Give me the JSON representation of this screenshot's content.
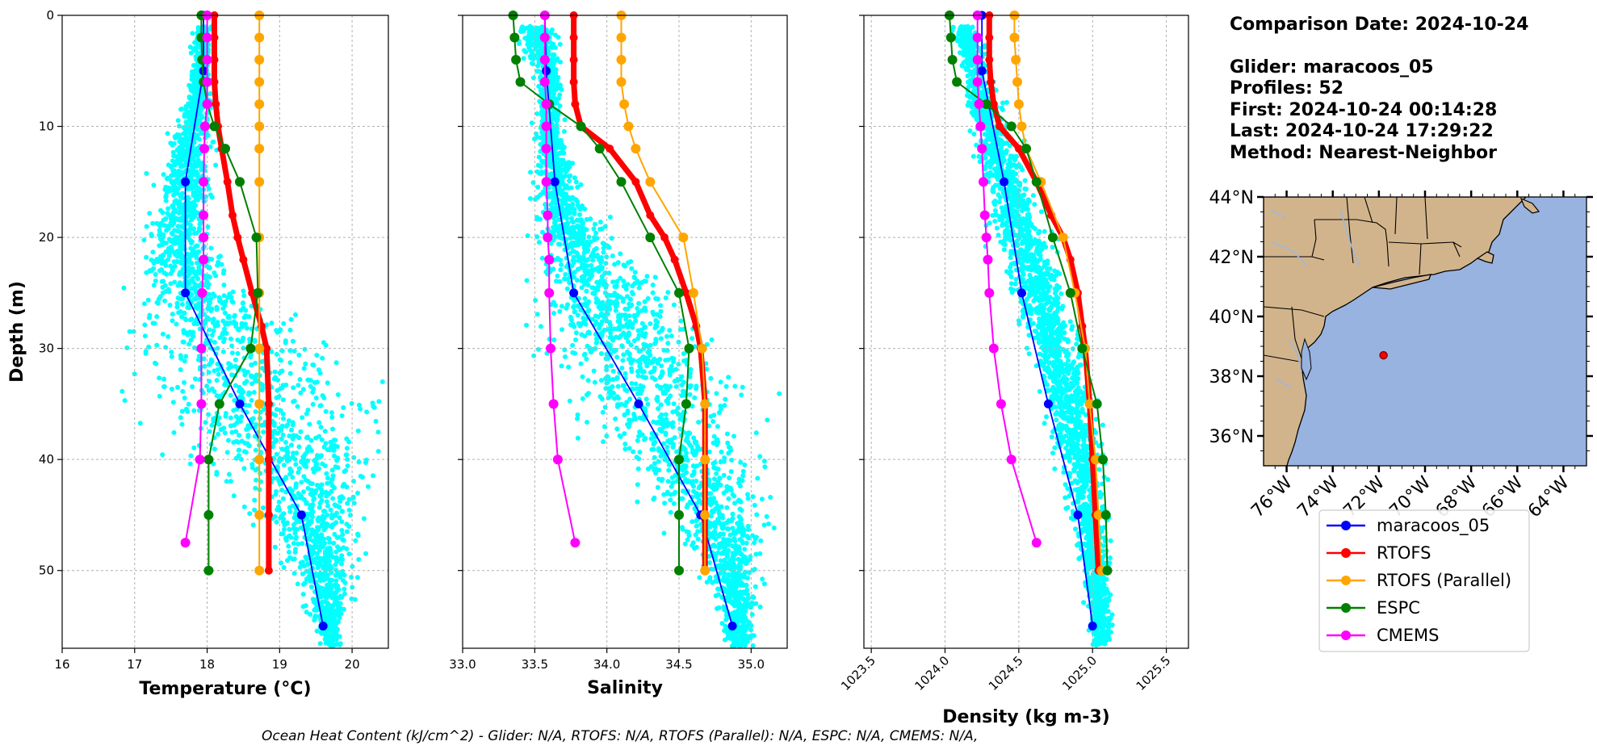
{
  "colors": {
    "glider_scatter": "#00ffff",
    "maracoos_05": "#0000ff",
    "RTOFS": "#ff0000",
    "RTOFS_Parallel": "#ffa500",
    "ESPC": "#008000",
    "CMEMS": "#ff00ff",
    "land": "#d2b48c",
    "ocean": "#98b3e0",
    "grid": "#b0b0b0"
  },
  "info": {
    "line1": "Comparison Date: 2024-10-24",
    "line2": "Glider: maracoos_05",
    "line3": "Profiles: 52",
    "line4": "First: 2024-10-24 00:14:28",
    "line5": "Last: 2024-10-24 17:29:22",
    "line6": "Method: Nearest-Neighbor"
  },
  "footer": "Ocean Heat Content (kJ/cm^2) - Glider: N/A,  RTOFS: N/A,  RTOFS (Parallel): N/A,  ESPC: N/A,  CMEMS: N/A,",
  "map": {
    "lat_labels": [
      "44°N",
      "42°N",
      "40°N",
      "38°N",
      "36°N"
    ],
    "lon_labels": [
      "76°W",
      "74°W",
      "72°W",
      "70°W",
      "68°W",
      "66°W",
      "64°W"
    ],
    "marker": {
      "lon": -71.8,
      "lat": 38.7
    }
  },
  "legend": [
    "maracoos_05",
    "RTOFS",
    "RTOFS (Parallel)",
    "ESPC",
    "CMEMS"
  ],
  "chart_data": [
    {
      "type": "line",
      "xlabel": "Temperature (°C)",
      "ylabel": "Depth (m)",
      "xlim": [
        16,
        20.5
      ],
      "ylim": [
        57,
        0
      ],
      "xticks": [
        "16",
        "17",
        "18",
        "19",
        "20"
      ],
      "yticks": [
        "0",
        "10",
        "20",
        "30",
        "40",
        "50"
      ],
      "grid": true,
      "series": [
        {
          "name": "maracoos_05",
          "depth": [
            0,
            5,
            15,
            25,
            35,
            45,
            55
          ],
          "values": [
            17.95,
            17.95,
            17.7,
            17.7,
            18.45,
            19.3,
            19.6
          ]
        },
        {
          "name": "RTOFS",
          "depth": [
            0,
            2,
            4,
            6,
            8,
            10,
            12,
            15,
            18,
            20,
            22,
            25,
            28,
            30,
            35,
            40,
            45,
            50
          ],
          "values": [
            18.1,
            18.1,
            18.1,
            18.1,
            18.12,
            18.15,
            18.2,
            18.28,
            18.35,
            18.42,
            18.5,
            18.62,
            18.75,
            18.82,
            18.85,
            18.85,
            18.85,
            18.85
          ]
        },
        {
          "name": "RTOFS (Parallel)",
          "depth": [
            0,
            2,
            4,
            6,
            8,
            10,
            12,
            15,
            20,
            25,
            30,
            35,
            40,
            45,
            50
          ],
          "values": [
            18.72,
            18.72,
            18.72,
            18.72,
            18.72,
            18.72,
            18.72,
            18.72,
            18.72,
            18.72,
            18.72,
            18.72,
            18.72,
            18.72,
            18.72
          ]
        },
        {
          "name": "ESPC",
          "depth": [
            0,
            2,
            4,
            6,
            8,
            10,
            12,
            15,
            20,
            25,
            30,
            35,
            40,
            45,
            50
          ],
          "values": [
            17.92,
            17.92,
            17.93,
            17.95,
            18.0,
            18.1,
            18.25,
            18.45,
            18.68,
            18.7,
            18.6,
            18.17,
            18.02,
            18.02,
            18.02
          ]
        },
        {
          "name": "CMEMS",
          "depth": [
            0,
            2,
            4,
            6,
            8,
            10,
            12,
            15,
            18,
            20,
            22,
            25,
            30,
            35,
            40,
            47.5
          ],
          "values": [
            18.0,
            18.0,
            18.0,
            18.0,
            18.0,
            17.97,
            17.96,
            17.95,
            17.95,
            17.95,
            17.95,
            17.93,
            17.92,
            17.92,
            17.9,
            17.7
          ]
        }
      ]
    },
    {
      "type": "line",
      "xlabel": "Salinity",
      "ylim": [
        57,
        0
      ],
      "xlim": [
        33.0,
        35.25
      ],
      "xticks": [
        "33.0",
        "33.5",
        "34.0",
        "34.5",
        "35.0"
      ],
      "grid": true,
      "series": [
        {
          "name": "maracoos_05",
          "depth": [
            0,
            5,
            15,
            25,
            35,
            45,
            55
          ],
          "values": [
            33.57,
            33.58,
            33.64,
            33.77,
            34.22,
            34.65,
            34.87
          ]
        },
        {
          "name": "RTOFS",
          "depth": [
            0,
            2,
            4,
            6,
            8,
            10,
            12,
            15,
            18,
            20,
            22,
            25,
            28,
            30,
            35,
            40,
            45,
            50
          ],
          "values": [
            33.77,
            33.77,
            33.77,
            33.77,
            33.78,
            33.82,
            34.02,
            34.2,
            34.3,
            34.4,
            34.47,
            34.55,
            34.62,
            34.65,
            34.68,
            34.68,
            34.68,
            34.68
          ]
        },
        {
          "name": "RTOFS (Parallel)",
          "depth": [
            0,
            2,
            4,
            6,
            8,
            10,
            12,
            15,
            20,
            25,
            30,
            35,
            40,
            45,
            50
          ],
          "values": [
            34.1,
            34.1,
            34.1,
            34.1,
            34.12,
            34.15,
            34.2,
            34.3,
            34.53,
            34.6,
            34.66,
            34.68,
            34.68,
            34.68,
            34.68
          ]
        },
        {
          "name": "ESPC",
          "depth": [
            0,
            2,
            4,
            6,
            8,
            10,
            12,
            15,
            20,
            25,
            30,
            35,
            40,
            45,
            50
          ],
          "values": [
            33.35,
            33.36,
            33.37,
            33.4,
            33.6,
            33.82,
            33.95,
            34.1,
            34.3,
            34.5,
            34.57,
            34.55,
            34.5,
            34.5,
            34.5
          ]
        },
        {
          "name": "CMEMS",
          "depth": [
            0,
            2,
            4,
            6,
            8,
            10,
            12,
            15,
            18,
            20,
            22,
            25,
            30,
            35,
            40,
            47.5
          ],
          "values": [
            33.57,
            33.57,
            33.57,
            33.57,
            33.58,
            33.58,
            33.58,
            33.58,
            33.59,
            33.59,
            33.6,
            33.6,
            33.61,
            33.63,
            33.66,
            33.78
          ]
        }
      ]
    },
    {
      "type": "line",
      "xlabel": "Density (kg m-3)",
      "ylim": [
        57,
        0
      ],
      "xlim": [
        1023.45,
        1025.65
      ],
      "xticks": [
        "1023.5",
        "1024.0",
        "1024.5",
        "1025.0",
        "1025.5"
      ],
      "grid": true,
      "series": [
        {
          "name": "maracoos_05",
          "depth": [
            0,
            5,
            15,
            25,
            35,
            45,
            55
          ],
          "values": [
            1024.25,
            1024.25,
            1024.4,
            1024.52,
            1024.7,
            1024.9,
            1025.0
          ]
        },
        {
          "name": "RTOFS",
          "depth": [
            0,
            2,
            4,
            6,
            8,
            10,
            12,
            15,
            18,
            20,
            22,
            25,
            28,
            30,
            35,
            40,
            45,
            50
          ],
          "values": [
            1024.3,
            1024.3,
            1024.3,
            1024.31,
            1024.33,
            1024.37,
            1024.5,
            1024.62,
            1024.72,
            1024.8,
            1024.85,
            1024.9,
            1024.93,
            1024.95,
            1024.98,
            1025.0,
            1025.02,
            1025.04
          ]
        },
        {
          "name": "RTOFS (Parallel)",
          "depth": [
            0,
            2,
            4,
            6,
            8,
            10,
            12,
            15,
            20,
            25,
            30,
            35,
            40,
            45,
            50
          ],
          "values": [
            1024.47,
            1024.47,
            1024.48,
            1024.49,
            1024.5,
            1024.52,
            1024.55,
            1024.65,
            1024.8,
            1024.88,
            1024.95,
            1024.98,
            1025.02,
            1025.04,
            1025.06
          ]
        },
        {
          "name": "ESPC",
          "depth": [
            0,
            2,
            4,
            6,
            8,
            10,
            12,
            15,
            20,
            25,
            30,
            35,
            40,
            45,
            50
          ],
          "values": [
            1024.03,
            1024.04,
            1024.05,
            1024.08,
            1024.28,
            1024.45,
            1024.55,
            1024.62,
            1024.73,
            1024.85,
            1024.93,
            1025.03,
            1025.07,
            1025.09,
            1025.1
          ]
        },
        {
          "name": "CMEMS",
          "depth": [
            0,
            2,
            4,
            6,
            8,
            10,
            12,
            15,
            18,
            20,
            22,
            25,
            30,
            35,
            40,
            47.5
          ],
          "values": [
            1024.22,
            1024.22,
            1024.22,
            1024.22,
            1024.23,
            1024.24,
            1024.25,
            1024.26,
            1024.27,
            1024.28,
            1024.29,
            1024.3,
            1024.33,
            1024.38,
            1024.45,
            1024.62
          ]
        }
      ]
    }
  ]
}
